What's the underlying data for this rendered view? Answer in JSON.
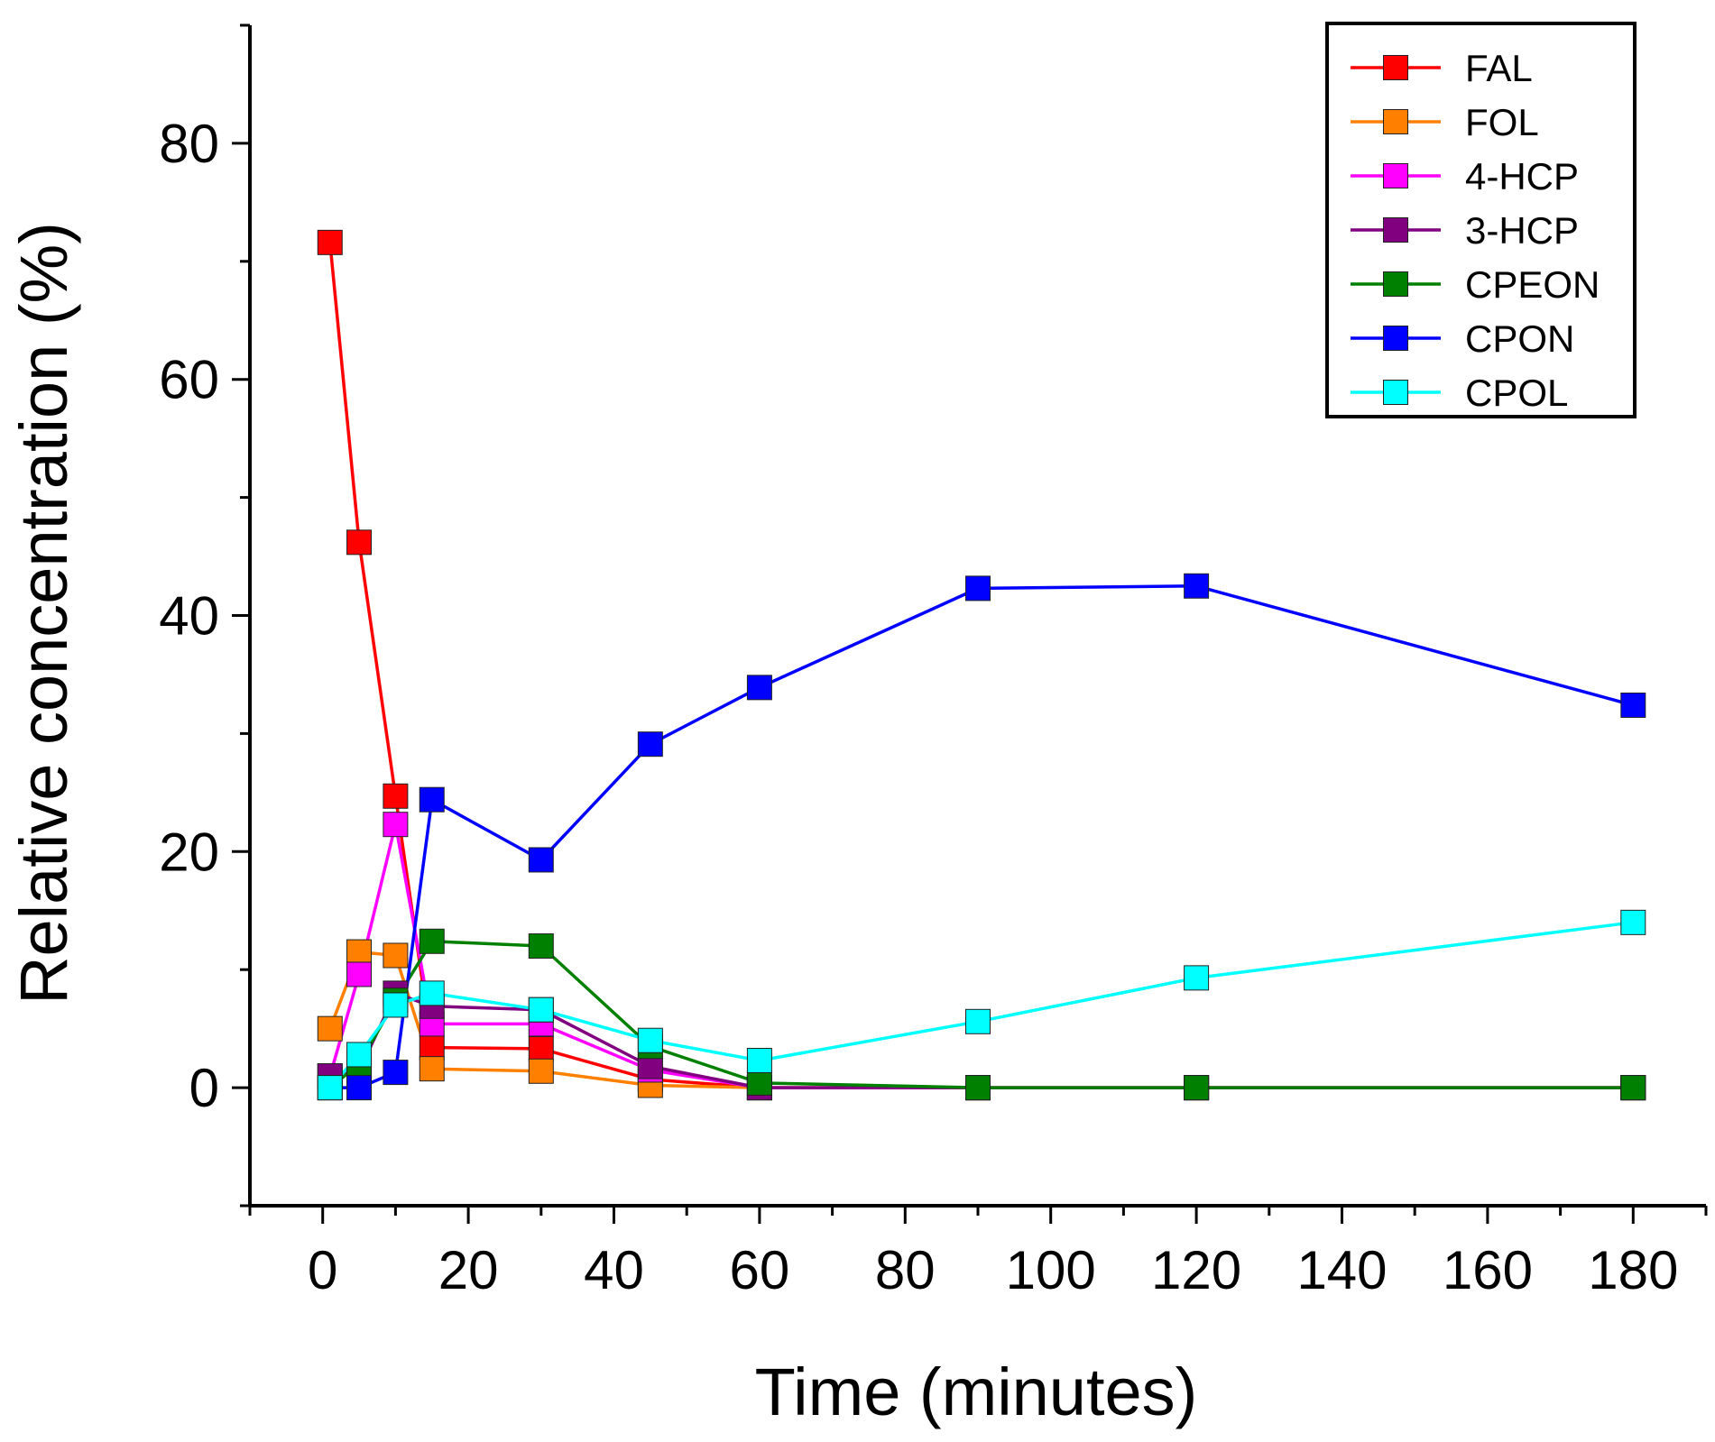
{
  "chart_data": {
    "type": "line",
    "title": "",
    "xlabel": "Time (minutes)",
    "ylabel": "Relative concentration (%)",
    "xlim": [
      -10,
      190
    ],
    "ylim": [
      -10,
      90
    ],
    "x_ticks": [
      0,
      20,
      40,
      60,
      80,
      100,
      120,
      140,
      160,
      180
    ],
    "y_ticks": [
      0,
      20,
      40,
      60,
      80
    ],
    "grid": false,
    "legend_position": "top-right",
    "marker": "square",
    "x": [
      1,
      5,
      10,
      15,
      30,
      45,
      60,
      90,
      120,
      180
    ],
    "series": [
      {
        "name": "FAL",
        "color": "#ff0000",
        "values": [
          71.6,
          46.2,
          24.7,
          3.4,
          3.3,
          0.7,
          0.0,
          0,
          0,
          0
        ]
      },
      {
        "name": "FOL",
        "color": "#ff8000",
        "values": [
          5.0,
          11.5,
          11.2,
          1.6,
          1.4,
          0.2,
          0.0,
          0,
          0,
          0
        ]
      },
      {
        "name": "4-HCP",
        "color": "#ff00ff",
        "values": [
          1.0,
          9.6,
          22.3,
          5.4,
          5.4,
          1.5,
          0.0,
          0,
          0,
          0
        ]
      },
      {
        "name": "3-HCP",
        "color": "#800080",
        "values": [
          1.0,
          1.4,
          8.0,
          6.9,
          6.6,
          1.8,
          0.0,
          0,
          0,
          0
        ]
      },
      {
        "name": "CPEON",
        "color": "#008000",
        "values": [
          0.0,
          2.0,
          7.4,
          12.4,
          12.0,
          3.5,
          0.4,
          0.0,
          0.0,
          0.0
        ]
      },
      {
        "name": "CPON",
        "color": "#0000ff",
        "values": [
          0.0,
          0.0,
          1.3,
          24.4,
          19.3,
          29.1,
          33.9,
          42.3,
          42.5,
          32.4
        ]
      },
      {
        "name": "CPOL",
        "color": "#00ffff",
        "values": [
          0.0,
          2.8,
          7.0,
          8.0,
          6.6,
          4.0,
          2.3,
          5.6,
          9.3,
          14.0
        ]
      }
    ]
  }
}
